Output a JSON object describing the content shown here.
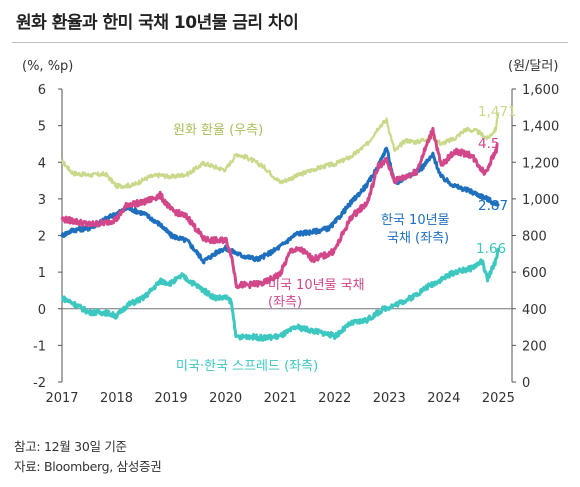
{
  "title": "원화 환율과 한미 국채 10년물 금리 차이",
  "footnotes": {
    "note": "참고: 12월 30일 기준",
    "source": "자료: Bloomberg, 삼성증권"
  },
  "chart_data": {
    "type": "line",
    "left_axis": {
      "unit_label": "(%, %p)",
      "ylim": [
        -2,
        6
      ],
      "ticks": [
        -2,
        -1,
        0,
        1,
        2,
        3,
        4,
        5,
        6
      ]
    },
    "right_axis": {
      "unit_label": "(원/달러)",
      "ylim": [
        0,
        1600
      ],
      "ticks": [
        "0",
        "200",
        "400",
        "600",
        "800",
        "1,000",
        "1,200",
        "1,400",
        "1,600"
      ]
    },
    "x_ticks": [
      "2017",
      "2018",
      "2019",
      "2020",
      "2021",
      "2022",
      "2023",
      "2024",
      "2025"
    ],
    "xlim": [
      2017.0,
      2025.25
    ],
    "grid": false,
    "colors": {
      "krw": "#c8d98a",
      "kr10y": "#1f6fbf",
      "us10y": "#d2468a",
      "spread": "#3cc7c0",
      "zero_line": "#777777"
    },
    "series": [
      {
        "key": "krw",
        "name": "원화 환율 (우측)",
        "axis": "right",
        "end_label": "1,471",
        "x": [
          2017.0,
          2017.2,
          2017.5,
          2017.8,
          2018.0,
          2018.3,
          2018.6,
          2018.8,
          2019.0,
          2019.3,
          2019.6,
          2019.9,
          2020.0,
          2020.2,
          2020.4,
          2020.7,
          2021.0,
          2021.3,
          2021.6,
          2021.9,
          2022.0,
          2022.3,
          2022.6,
          2022.8,
          2022.95,
          2023.1,
          2023.3,
          2023.5,
          2023.8,
          2023.95,
          2024.2,
          2024.4,
          2024.6,
          2024.8,
          2024.95,
          2025.0
        ],
        "y": [
          1205,
          1140,
          1130,
          1135,
          1070,
          1075,
          1120,
          1130,
          1120,
          1135,
          1195,
          1165,
          1160,
          1245,
          1225,
          1175,
          1090,
          1125,
          1160,
          1185,
          1190,
          1230,
          1300,
          1390,
          1430,
          1260,
          1320,
          1310,
          1340,
          1300,
          1330,
          1380,
          1370,
          1330,
          1380,
          1471
        ]
      },
      {
        "key": "kr10y",
        "name": "한국 10년물 국채 (좌측)",
        "axis": "left",
        "end_label": "2.87",
        "x": [
          2017.0,
          2017.2,
          2017.5,
          2017.8,
          2018.0,
          2018.2,
          2018.5,
          2018.8,
          2019.0,
          2019.3,
          2019.6,
          2019.9,
          2020.0,
          2020.3,
          2020.6,
          2020.9,
          2021.0,
          2021.3,
          2021.6,
          2021.9,
          2022.0,
          2022.3,
          2022.6,
          2022.8,
          2022.95,
          2023.1,
          2023.3,
          2023.6,
          2023.8,
          2023.95,
          2024.2,
          2024.5,
          2024.8,
          2024.95,
          2025.0
        ],
        "y": [
          2.0,
          2.15,
          2.2,
          2.45,
          2.6,
          2.75,
          2.6,
          2.3,
          2.0,
          1.85,
          1.3,
          1.6,
          1.65,
          1.45,
          1.35,
          1.6,
          1.7,
          2.05,
          2.1,
          2.2,
          2.35,
          2.9,
          3.4,
          3.9,
          4.4,
          3.4,
          3.6,
          3.85,
          4.2,
          3.6,
          3.35,
          3.2,
          3.0,
          2.85,
          2.87
        ]
      },
      {
        "key": "us10y",
        "name": "미국 10년물 국채 (좌측)",
        "axis": "left",
        "end_label": "4.5",
        "x": [
          2017.0,
          2017.2,
          2017.5,
          2017.8,
          2018.0,
          2018.2,
          2018.5,
          2018.8,
          2019.0,
          2019.3,
          2019.6,
          2019.9,
          2020.0,
          2020.1,
          2020.2,
          2020.4,
          2020.7,
          2021.0,
          2021.2,
          2021.4,
          2021.6,
          2021.9,
          2022.0,
          2022.3,
          2022.6,
          2022.8,
          2022.95,
          2023.1,
          2023.3,
          2023.5,
          2023.8,
          2023.95,
          2024.2,
          2024.5,
          2024.75,
          2024.95,
          2025.0
        ],
        "y": [
          2.45,
          2.4,
          2.3,
          2.35,
          2.45,
          2.85,
          2.9,
          3.1,
          2.7,
          2.5,
          1.9,
          1.85,
          1.9,
          1.5,
          0.65,
          0.65,
          0.7,
          0.95,
          1.6,
          1.6,
          1.35,
          1.5,
          1.6,
          2.5,
          2.9,
          3.9,
          4.05,
          3.5,
          3.6,
          3.75,
          4.9,
          3.9,
          4.3,
          4.2,
          3.7,
          4.3,
          4.5
        ]
      },
      {
        "key": "spread",
        "name": "미국·한국 스프레드 (좌측)",
        "axis": "left",
        "end_label": "1.66",
        "x": [
          2017.0,
          2017.2,
          2017.5,
          2017.8,
          2018.0,
          2018.2,
          2018.5,
          2018.8,
          2019.0,
          2019.2,
          2019.5,
          2019.8,
          2020.0,
          2020.1,
          2020.2,
          2020.4,
          2020.7,
          2021.0,
          2021.3,
          2021.6,
          2021.9,
          2022.0,
          2022.3,
          2022.6,
          2022.9,
          2023.1,
          2023.4,
          2023.7,
          2023.95,
          2024.2,
          2024.5,
          2024.7,
          2024.8,
          2024.95,
          2025.0
        ],
        "y": [
          0.3,
          0.15,
          -0.1,
          -0.1,
          -0.2,
          0.1,
          0.3,
          0.75,
          0.7,
          0.9,
          0.6,
          0.3,
          0.3,
          0.2,
          -0.8,
          -0.75,
          -0.8,
          -0.75,
          -0.5,
          -0.6,
          -0.7,
          -0.75,
          -0.4,
          -0.3,
          0.0,
          0.1,
          0.3,
          0.6,
          0.8,
          1.0,
          1.1,
          1.3,
          0.8,
          1.3,
          1.66
        ]
      }
    ],
    "series_labels": {
      "krw": "원화 환율 (우측)",
      "us10y_line1": "미국 10년물 국채",
      "us10y_line2": "(좌측)",
      "kr10y_line1": "한국 10년물",
      "kr10y_line2": "국채 (좌측)",
      "spread": "미국·한국 스프레드 (좌측)"
    }
  }
}
